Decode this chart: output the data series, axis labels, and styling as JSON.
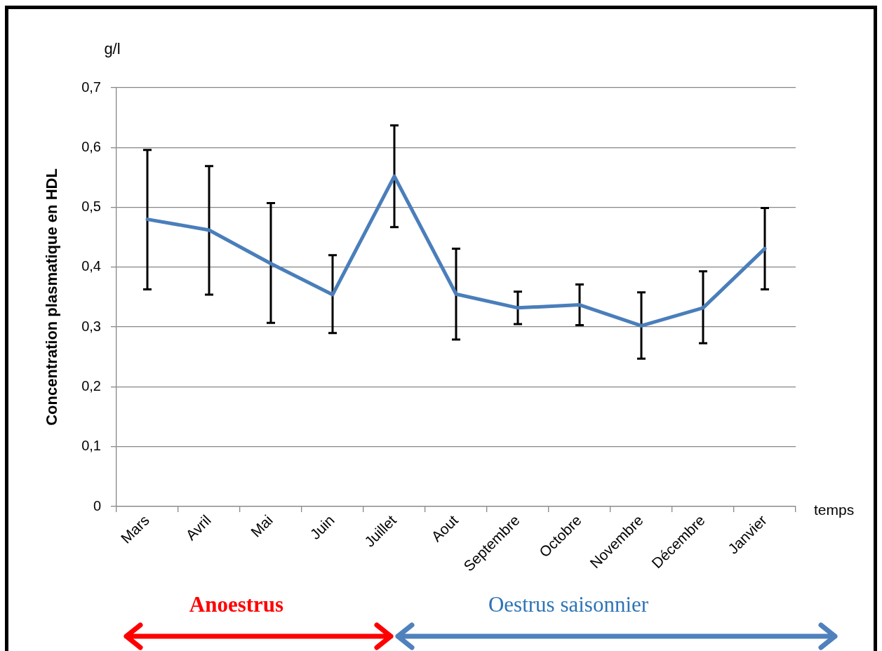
{
  "chart_data": {
    "type": "line",
    "ylabel": "Concentration plasmatique en HDL",
    "xlabel": "temps",
    "annotations": [
      "g/l",
      "Anoestrus",
      "Oestrus saisonnier"
    ],
    "categories": [
      "Mars",
      "Avril",
      "Mai",
      "Juin",
      "Juillet",
      "Aout",
      "Septembre",
      "Octobre",
      "Novembre",
      "Décembre",
      "Janvier"
    ],
    "series": [
      {
        "color": "#4a7ebb",
        "values": [
          0.48,
          0.462,
          0.406,
          0.354,
          0.552,
          0.355,
          0.332,
          0.337,
          0.302,
          0.332,
          0.431
        ],
        "errors": [
          [
            0.363,
            0.596
          ],
          [
            0.354,
            0.569
          ],
          [
            0.307,
            0.507
          ],
          [
            0.29,
            0.42
          ],
          [
            0.467,
            0.637
          ],
          [
            0.279,
            0.431
          ],
          [
            0.305,
            0.359
          ],
          [
            0.303,
            0.371
          ],
          [
            0.247,
            0.358
          ],
          [
            0.273,
            0.393
          ],
          [
            0.363,
            0.499
          ]
        ]
      }
    ],
    "ylim": [
      0,
      0.7
    ],
    "yticks": [
      0,
      {
        "value": 0.1,
        "label": "0,1"
      },
      {
        "value": 0.2,
        "label": "0,2"
      },
      {
        "value": 0.3,
        "label": "0,3"
      },
      {
        "value": 0.4,
        "label": "0,4"
      },
      {
        "value": 0.5,
        "label": "0,5"
      },
      {
        "value": 0.6,
        "label": "0,6"
      },
      {
        "value": 0.7,
        "label": "0,7"
      }
    ],
    "grid": "y",
    "legend": false,
    "marker": "none",
    "line_style": "solid"
  }
}
